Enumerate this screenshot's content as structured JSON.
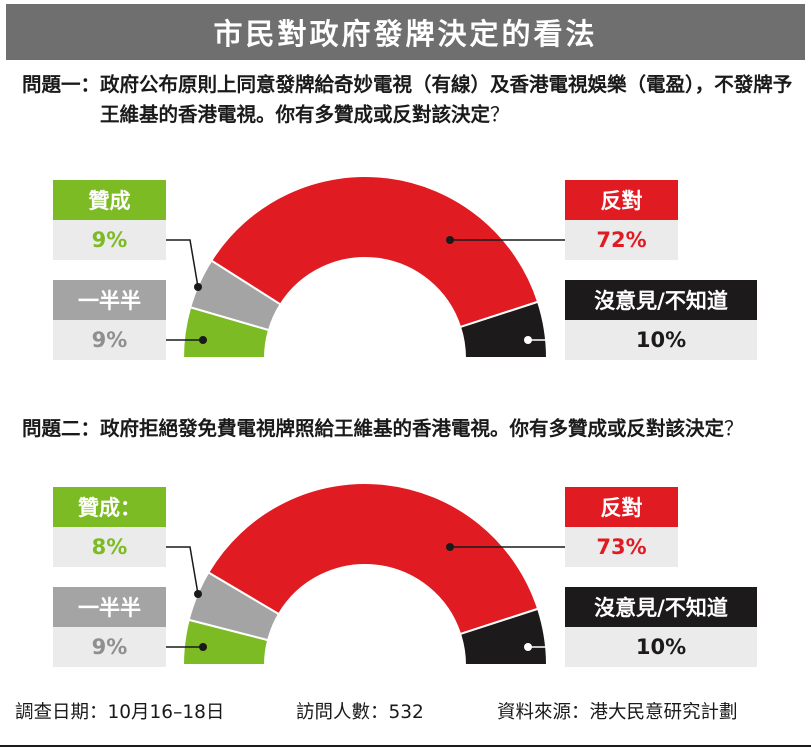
{
  "page": {
    "title": "市民對政府發牌決定的看法"
  },
  "questions": [
    {
      "label": "問題一：",
      "text": "政府公布原則上同意發牌給奇妙電視（有線）及香港電視娛樂（電盈），不發牌予王維基的香港電視。你有多贊成或反對該決定",
      "mark": "？"
    },
    {
      "label": "問題二：",
      "text": "政府拒絕發免費電視牌照給王維基的香港電視。你有多贊成或反對該決定",
      "mark": "？"
    }
  ],
  "chart_data": [
    {
      "type": "pie",
      "shape": "half-donut",
      "categories": [
        "贊成",
        "一半半",
        "反對",
        "沒意見/不知道"
      ],
      "labels": [
        "贊成",
        "一半半",
        "反對",
        "沒意見/不知道"
      ],
      "values": [
        9,
        9,
        72,
        10
      ],
      "value_labels": [
        "9%",
        "9%",
        "72%",
        "10%"
      ],
      "colors": [
        "#7dbb24",
        "#a4a4a4",
        "#e01b22",
        "#1c1a1a"
      ],
      "unit": "%"
    },
    {
      "type": "pie",
      "shape": "half-donut",
      "categories": [
        "贊成",
        "一半半",
        "反對",
        "沒意見/不知道"
      ],
      "labels": [
        "贊成：",
        "一半半",
        "反對",
        "沒意見/不知道"
      ],
      "values": [
        8,
        9,
        73,
        10
      ],
      "value_labels": [
        "8%",
        "9%",
        "73%",
        "10%"
      ],
      "colors": [
        "#7dbb24",
        "#a4a4a4",
        "#e01b22",
        "#1c1a1a"
      ],
      "unit": "%"
    }
  ],
  "footer": {
    "survey_date": "調查日期：10月16–18日",
    "respondents": "訪問人數：532",
    "source": "資料來源：港大民意研究計劃"
  }
}
